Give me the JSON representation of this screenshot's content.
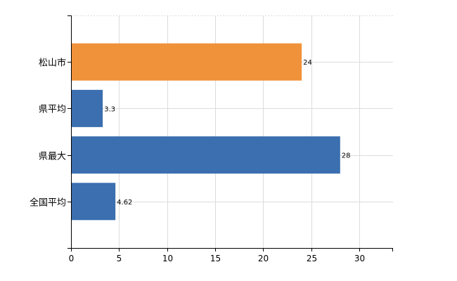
{
  "chart_data": {
    "type": "bar",
    "orientation": "horizontal",
    "title": "",
    "xlabel": "",
    "ylabel": "",
    "categories": [
      "松山市",
      "県平均",
      "県最大",
      "全国平均"
    ],
    "values": [
      24,
      3.3,
      28,
      4.62
    ],
    "value_labels": [
      "24",
      "3.3",
      "28",
      "4.62"
    ],
    "bar_colors": [
      "#f0923a",
      "#3b6faf",
      "#3b6faf",
      "#3b6faf"
    ],
    "xlim": [
      0,
      33.5
    ],
    "x_ticks": [
      0,
      5,
      10,
      15,
      20,
      25,
      30
    ],
    "x_tick_labels": [
      "0",
      "5",
      "10",
      "15",
      "20",
      "25",
      "30"
    ],
    "grid": true,
    "legend": "none"
  }
}
